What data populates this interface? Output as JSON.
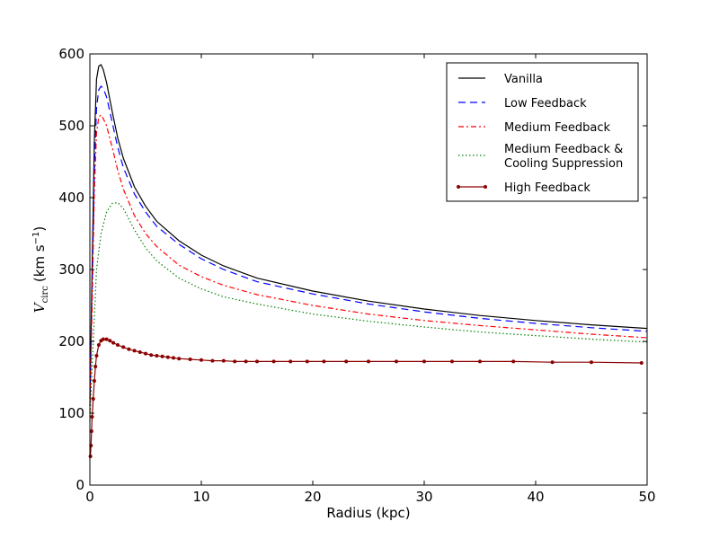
{
  "chart_data": {
    "type": "line",
    "title": "",
    "xlabel": "Radius (kpc)",
    "ylabel": "(km s",
    "ylabel_symbol": "V",
    "ylabel_subscript": "circ",
    "ylabel_exponent": "−1",
    "ylabel_close": ")",
    "xlim": [
      0,
      50
    ],
    "ylim": [
      0,
      600
    ],
    "xticks": [
      0,
      10,
      20,
      30,
      40,
      50
    ],
    "yticks": [
      0,
      100,
      200,
      300,
      400,
      500,
      600
    ],
    "grid": false,
    "legend_position": "top-right",
    "series": [
      {
        "name": "Vanilla",
        "color": "#000000",
        "style": "solid",
        "x": [
          0,
          0.2,
          0.4,
          0.6,
          0.8,
          1.0,
          1.2,
          1.5,
          2,
          2.5,
          3,
          4,
          5,
          6,
          8,
          10,
          12,
          15,
          20,
          25,
          30,
          35,
          40,
          45,
          50
        ],
        "y": [
          120,
          300,
          480,
          565,
          583,
          585,
          578,
          560,
          520,
          483,
          455,
          415,
          388,
          367,
          340,
          320,
          305,
          288,
          270,
          256,
          245,
          236,
          229,
          223,
          218
        ]
      },
      {
        "name": "Low Feedback",
        "color": "#0000ff",
        "style": "dashed",
        "x": [
          0,
          0.2,
          0.4,
          0.6,
          0.8,
          1.0,
          1.2,
          1.5,
          2,
          2.5,
          3,
          4,
          5,
          6,
          8,
          10,
          12,
          15,
          20,
          25,
          30,
          35,
          40,
          45,
          50
        ],
        "y": [
          110,
          270,
          440,
          525,
          550,
          555,
          552,
          540,
          505,
          470,
          442,
          405,
          380,
          360,
          335,
          315,
          300,
          283,
          266,
          252,
          241,
          232,
          225,
          219,
          214
        ]
      },
      {
        "name": "Medium Feedback",
        "color": "#ff0000",
        "style": "dashdot",
        "x": [
          0,
          0.2,
          0.4,
          0.6,
          0.8,
          1.0,
          1.2,
          1.5,
          2,
          2.5,
          3,
          4,
          5,
          6,
          8,
          10,
          12,
          15,
          20,
          25,
          30,
          35,
          40,
          45,
          50
        ],
        "y": [
          100,
          250,
          410,
          490,
          512,
          515,
          510,
          500,
          470,
          438,
          412,
          375,
          350,
          332,
          306,
          290,
          278,
          265,
          250,
          238,
          229,
          222,
          216,
          210,
          205
        ]
      },
      {
        "name": "Medium Feedback &\nCooling Suppression",
        "color": "#008000",
        "style": "dotted",
        "x": [
          0,
          0.3,
          0.6,
          1.0,
          1.5,
          2.0,
          2.5,
          3,
          3.5,
          4,
          5,
          6,
          8,
          10,
          12,
          15,
          20,
          25,
          30,
          35,
          40,
          45,
          50
        ],
        "y": [
          90,
          200,
          300,
          350,
          380,
          392,
          393,
          385,
          370,
          355,
          330,
          312,
          288,
          273,
          262,
          252,
          238,
          228,
          220,
          213,
          208,
          203,
          199
        ]
      },
      {
        "name": "High Feedback",
        "color": "#8b0000",
        "style": "solid-marker",
        "x": [
          0.05,
          0.1,
          0.15,
          0.2,
          0.3,
          0.4,
          0.5,
          0.6,
          0.8,
          1.0,
          1.2,
          1.5,
          1.8,
          2.1,
          2.5,
          3.0,
          3.5,
          4.0,
          4.5,
          5.0,
          5.5,
          6.0,
          6.5,
          7.0,
          7.5,
          8.0,
          9.0,
          10.0,
          11.0,
          12.0,
          13.0,
          14.0,
          15.0,
          16.5,
          18.0,
          19.5,
          21.0,
          23.0,
          25.0,
          27.5,
          30.0,
          32.5,
          35.0,
          38.0,
          41.5,
          45.0,
          49.5
        ],
        "y": [
          40,
          55,
          75,
          95,
          120,
          145,
          165,
          180,
          195,
          201,
          203,
          203,
          201,
          198,
          195,
          192,
          189,
          187,
          185,
          183,
          181,
          180,
          179,
          178,
          177,
          176,
          175,
          174,
          173,
          173,
          172,
          172,
          172,
          172,
          172,
          172,
          172,
          172,
          172,
          172,
          172,
          172,
          172,
          172,
          171,
          171,
          170
        ]
      }
    ]
  }
}
